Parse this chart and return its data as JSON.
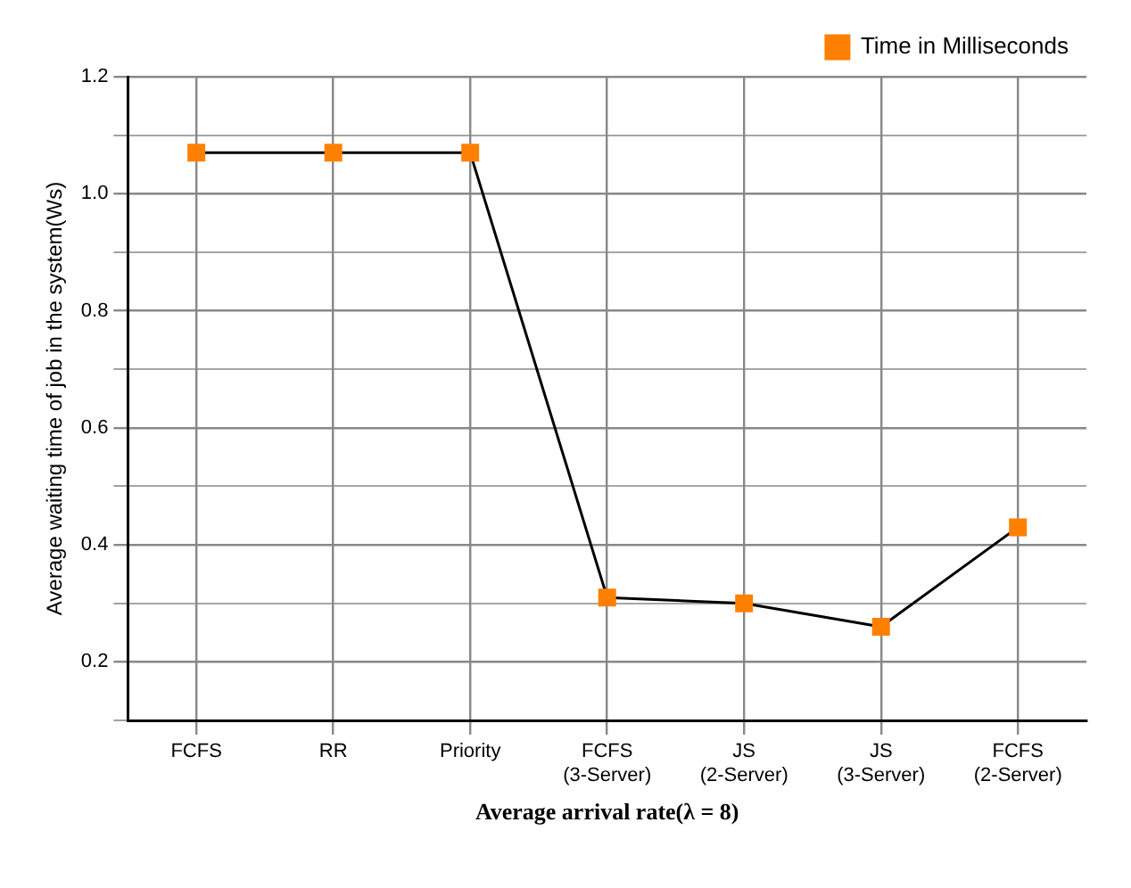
{
  "chart_data": {
    "type": "line",
    "xlabel": "Average arrival rate(λ = 8)",
    "ylabel": "Average waiting time of job in the system(Ws)",
    "categories": [
      "FCFS",
      "RR",
      "Priority",
      "FCFS (3-Server)",
      "JS (2-Server)",
      "JS (3-Server)",
      "FCFS (2-Server)"
    ],
    "series": [
      {
        "name": "Time in Milliseconds",
        "color": "#ff8000",
        "values": [
          1.07,
          1.07,
          1.07,
          0.31,
          0.3,
          0.26,
          0.43
        ]
      }
    ],
    "ylim": [
      0.1,
      1.2
    ],
    "yticks": [
      {
        "value": 0.1,
        "label": null
      },
      0.2,
      {
        "value": 0.3,
        "label": null
      },
      0.4,
      {
        "value": 0.5,
        "label": null
      },
      0.6,
      {
        "value": 0.7,
        "label": null
      },
      0.8,
      {
        "value": 0.9,
        "label": null
      },
      {
        "value": 1,
        "label": "1.0"
      },
      {
        "value": 1.1,
        "label": null
      },
      1.2
    ],
    "grid": true,
    "legend": "top right",
    "marker": "square",
    "line_style": "solid"
  }
}
